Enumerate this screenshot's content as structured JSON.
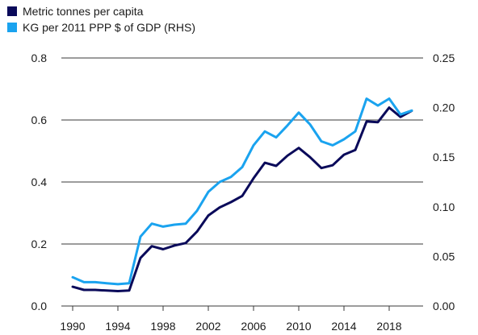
{
  "chart_data": {
    "type": "line",
    "title": "",
    "xlabel": "",
    "ylabel": "",
    "xlim": [
      1989,
      2021
    ],
    "ylim_left": [
      0,
      0.8
    ],
    "ylim_right": [
      0,
      0.25
    ],
    "grid": "horizontal",
    "legend_position": "top-left",
    "x_ticks": [
      1990,
      1994,
      1998,
      2002,
      2006,
      2010,
      2014,
      2018
    ],
    "x_tick_labels": [
      "1990",
      "1994",
      "1998",
      "2002",
      "2006",
      "2010",
      "2014",
      "2018"
    ],
    "y_left_ticks": [
      0,
      0.2,
      0.4,
      0.6,
      0.8
    ],
    "y_left_tick_labels": [
      "0.0",
      "0.2",
      "0.4",
      "0.6",
      "0.8"
    ],
    "y_right_ticks": [
      0,
      0.05,
      0.1,
      0.15,
      0.2,
      0.25
    ],
    "y_right_tick_labels": [
      "0.00",
      "0.05",
      "0.10",
      "0.15",
      "0.20",
      "0.25"
    ],
    "series": [
      {
        "name": "Metric tonnes per capita",
        "axis": "left",
        "color": "#0a0a5a",
        "x": [
          1990,
          1991,
          1992,
          1993,
          1994,
          1995,
          1996,
          1997,
          1998,
          1999,
          2000,
          2001,
          2002,
          2003,
          2004,
          2005,
          2006,
          2007,
          2008,
          2009,
          2010,
          2011,
          2012,
          2013,
          2014,
          2015,
          2016,
          2017,
          2018,
          2019,
          2020
        ],
        "values": [
          0.062,
          0.052,
          0.052,
          0.05,
          0.048,
          0.05,
          0.155,
          0.193,
          0.183,
          0.195,
          0.203,
          0.24,
          0.292,
          0.318,
          0.335,
          0.355,
          0.412,
          0.462,
          0.452,
          0.485,
          0.51,
          0.48,
          0.445,
          0.454,
          0.488,
          0.503,
          0.595,
          0.593,
          0.64,
          0.61,
          0.63
        ]
      },
      {
        "name": "KG per 2011 PPP $ of GDP (RHS)",
        "axis": "right",
        "color": "#1aa3ef",
        "x": [
          1990,
          1991,
          1992,
          1993,
          1994,
          1995,
          1996,
          1997,
          1998,
          1999,
          2000,
          2001,
          2002,
          2003,
          2004,
          2005,
          2006,
          2007,
          2008,
          2009,
          2010,
          2011,
          2012,
          2013,
          2014,
          2015,
          2016,
          2017,
          2018,
          2019,
          2020
        ],
        "values": [
          0.029,
          0.024,
          0.024,
          0.023,
          0.022,
          0.023,
          0.07,
          0.083,
          0.08,
          0.082,
          0.083,
          0.096,
          0.115,
          0.125,
          0.13,
          0.14,
          0.162,
          0.176,
          0.17,
          0.182,
          0.195,
          0.183,
          0.166,
          0.162,
          0.168,
          0.176,
          0.209,
          0.202,
          0.209,
          0.193,
          0.197
        ]
      }
    ]
  }
}
